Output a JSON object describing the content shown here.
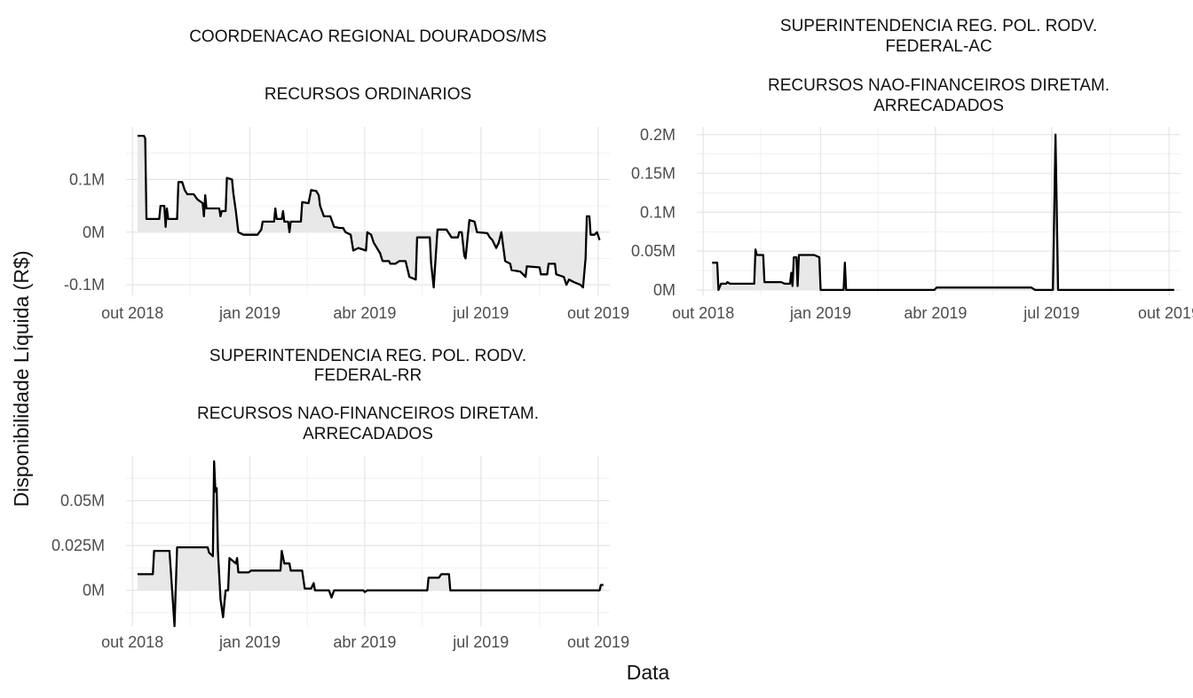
{
  "chart_data": {
    "type": "area",
    "xlabel": "Data",
    "ylabel": "Disponibilidade Líquida (R$)",
    "x_ticks": [
      "out 2018",
      "jan 2019",
      "abr 2019",
      "jul 2019",
      "out 2019"
    ],
    "panels": [
      {
        "title_lines": [
          "COORDENACAO REGIONAL DOURADOS/MS",
          "",
          "RECURSOS ORDINARIOS"
        ],
        "ylim": [
          -0.12,
          0.2
        ],
        "y_ticks": [
          {
            "value": -0.1,
            "label": "-0.1M"
          },
          {
            "value": 0,
            "label": "0M"
          },
          {
            "value": 0.1,
            "label": "0.1M"
          }
        ],
        "unit": "milhões R$",
        "points": [
          [
            "2018-10-05",
            0.183
          ],
          [
            "2018-10-10",
            0.183
          ],
          [
            "2018-10-11",
            0.178
          ],
          [
            "2018-10-12",
            0.025
          ],
          [
            "2018-10-17",
            0.025
          ],
          [
            "2018-10-22",
            0.025
          ],
          [
            "2018-10-23",
            0.05
          ],
          [
            "2018-10-26",
            0.05
          ],
          [
            "2018-10-27",
            0.01
          ],
          [
            "2018-10-28",
            0.045
          ],
          [
            "2018-10-29",
            0.025
          ],
          [
            "2018-11-05",
            0.025
          ],
          [
            "2018-11-06",
            0.095
          ],
          [
            "2018-11-09",
            0.095
          ],
          [
            "2018-11-11",
            0.08
          ],
          [
            "2018-11-13",
            0.072
          ],
          [
            "2018-11-18",
            0.072
          ],
          [
            "2018-11-21",
            0.062
          ],
          [
            "2018-11-25",
            0.055
          ],
          [
            "2018-11-26",
            0.03
          ],
          [
            "2018-11-27",
            0.07
          ],
          [
            "2018-11-28",
            0.045
          ],
          [
            "2018-12-08",
            0.045
          ],
          [
            "2018-12-09",
            0.03
          ],
          [
            "2018-12-10",
            0.04
          ],
          [
            "2018-12-13",
            0.04
          ],
          [
            "2018-12-14",
            0.103
          ],
          [
            "2018-12-18",
            0.1
          ],
          [
            "2018-12-19",
            0.075
          ],
          [
            "2018-12-21",
            0.04
          ],
          [
            "2018-12-23",
            0.0
          ],
          [
            "2018-12-27",
            -0.005
          ],
          [
            "2019-01-07",
            -0.005
          ],
          [
            "2019-01-10",
            0.005
          ],
          [
            "2019-01-11",
            0.02
          ],
          [
            "2019-01-20",
            0.02
          ],
          [
            "2019-01-21",
            0.045
          ],
          [
            "2019-01-22",
            0.025
          ],
          [
            "2019-01-26",
            0.025
          ],
          [
            "2019-01-27",
            0.04
          ],
          [
            "2019-01-28",
            0.02
          ],
          [
            "2019-01-31",
            0.02
          ],
          [
            "2019-02-01",
            0.0
          ],
          [
            "2019-02-02",
            0.02
          ],
          [
            "2019-02-10",
            0.02
          ],
          [
            "2019-02-11",
            0.057
          ],
          [
            "2019-02-16",
            0.055
          ],
          [
            "2019-02-18",
            0.08
          ],
          [
            "2019-02-22",
            0.078
          ],
          [
            "2019-02-24",
            0.07
          ],
          [
            "2019-02-25",
            0.05
          ],
          [
            "2019-02-28",
            0.03
          ],
          [
            "2019-03-05",
            0.03
          ],
          [
            "2019-03-08",
            0.01
          ],
          [
            "2019-03-12",
            0.008
          ],
          [
            "2019-03-15",
            0.008
          ],
          [
            "2019-03-17",
            0.0
          ],
          [
            "2019-03-21",
            -0.005
          ],
          [
            "2019-03-23",
            -0.035
          ],
          [
            "2019-03-27",
            -0.03
          ],
          [
            "2019-04-02",
            -0.035
          ],
          [
            "2019-04-03",
            0.0
          ],
          [
            "2019-04-06",
            -0.005
          ],
          [
            "2019-04-08",
            -0.02
          ],
          [
            "2019-04-13",
            -0.04
          ],
          [
            "2019-04-15",
            -0.055
          ],
          [
            "2019-04-20",
            -0.055
          ],
          [
            "2019-04-21",
            -0.06
          ],
          [
            "2019-04-25",
            -0.06
          ],
          [
            "2019-04-28",
            -0.055
          ],
          [
            "2019-05-03",
            -0.055
          ],
          [
            "2019-05-06",
            -0.085
          ],
          [
            "2019-05-11",
            -0.09
          ],
          [
            "2019-05-12",
            -0.01
          ],
          [
            "2019-05-17",
            -0.01
          ],
          [
            "2019-05-22",
            -0.01
          ],
          [
            "2019-05-23",
            -0.06
          ],
          [
            "2019-05-25",
            -0.105
          ],
          [
            "2019-05-28",
            0.005
          ],
          [
            "2019-06-04",
            0.005
          ],
          [
            "2019-06-08",
            -0.01
          ],
          [
            "2019-06-13",
            -0.01
          ],
          [
            "2019-06-14",
            0.0
          ],
          [
            "2019-06-16",
            0.0
          ],
          [
            "2019-06-18",
            -0.045
          ],
          [
            "2019-06-19",
            -0.05
          ],
          [
            "2019-06-22",
            0.023
          ],
          [
            "2019-06-26",
            0.02
          ],
          [
            "2019-06-28",
            0.0
          ],
          [
            "2019-07-06",
            -0.002
          ],
          [
            "2019-07-08",
            -0.01
          ],
          [
            "2019-07-10",
            -0.015
          ],
          [
            "2019-07-13",
            -0.03
          ],
          [
            "2019-07-15",
            -0.02
          ],
          [
            "2019-07-17",
            0.0
          ],
          [
            "2019-07-20",
            -0.055
          ],
          [
            "2019-07-24",
            -0.06
          ],
          [
            "2019-07-25",
            -0.072
          ],
          [
            "2019-08-01",
            -0.075
          ],
          [
            "2019-08-05",
            -0.085
          ],
          [
            "2019-08-06",
            -0.065
          ],
          [
            "2019-08-16",
            -0.067
          ],
          [
            "2019-08-17",
            -0.08
          ],
          [
            "2019-08-22",
            -0.08
          ],
          [
            "2019-08-23",
            -0.06
          ],
          [
            "2019-08-28",
            -0.06
          ],
          [
            "2019-08-29",
            -0.08
          ],
          [
            "2019-09-04",
            -0.085
          ],
          [
            "2019-09-06",
            -0.1
          ],
          [
            "2019-09-08",
            -0.09
          ],
          [
            "2019-09-12",
            -0.095
          ],
          [
            "2019-09-17",
            -0.1
          ],
          [
            "2019-09-19",
            -0.105
          ],
          [
            "2019-09-21",
            -0.05
          ],
          [
            "2019-09-22",
            0.03
          ],
          [
            "2019-09-24",
            0.03
          ],
          [
            "2019-09-25",
            -0.005
          ],
          [
            "2019-09-28",
            -0.005
          ],
          [
            "2019-09-30",
            0.0
          ],
          [
            "2019-10-02",
            -0.015
          ]
        ]
      },
      {
        "title_lines": [
          "SUPERINTENDENCIA REG. POL. RODV.",
          "FEDERAL-AC",
          "",
          "RECURSOS NAO-FINANCEIROS DIRETAM.",
          "ARRECADADOS"
        ],
        "ylim": [
          -0.007,
          0.21
        ],
        "y_ticks": [
          {
            "value": 0,
            "label": "0M"
          },
          {
            "value": 0.05,
            "label": "0.05M"
          },
          {
            "value": 0.1,
            "label": "0.1M"
          },
          {
            "value": 0.15,
            "label": "0.15M"
          },
          {
            "value": 0.2,
            "label": "0.2M"
          }
        ],
        "unit": "milhões R$",
        "points": [
          [
            "2018-10-08",
            0.035
          ],
          [
            "2018-10-12",
            0.035
          ],
          [
            "2018-10-13",
            0.0
          ],
          [
            "2018-10-15",
            0.008
          ],
          [
            "2018-10-19",
            0.008
          ],
          [
            "2018-10-20",
            0.01
          ],
          [
            "2018-10-22",
            0.008
          ],
          [
            "2018-11-10",
            0.008
          ],
          [
            "2018-11-11",
            0.052
          ],
          [
            "2018-11-12",
            0.045
          ],
          [
            "2018-11-17",
            0.045
          ],
          [
            "2018-11-18",
            0.01
          ],
          [
            "2018-12-01",
            0.01
          ],
          [
            "2018-12-04",
            0.008
          ],
          [
            "2018-12-08",
            0.008
          ],
          [
            "2018-12-09",
            0.022
          ],
          [
            "2018-12-10",
            0.005
          ],
          [
            "2018-12-11",
            0.042
          ],
          [
            "2018-12-13",
            0.042
          ],
          [
            "2018-12-14",
            0.005
          ],
          [
            "2018-12-15",
            0.045
          ],
          [
            "2018-12-27",
            0.045
          ],
          [
            "2018-12-31",
            0.042
          ],
          [
            "2019-01-01",
            0.0
          ],
          [
            "2019-01-19",
            0.0
          ],
          [
            "2019-01-20",
            0.035
          ],
          [
            "2019-01-21",
            0.0
          ],
          [
            "2019-03-31",
            0.0
          ],
          [
            "2019-04-02",
            0.003
          ],
          [
            "2019-06-15",
            0.003
          ],
          [
            "2019-06-18",
            0.0
          ],
          [
            "2019-07-02",
            0.0
          ],
          [
            "2019-07-04",
            0.2
          ],
          [
            "2019-07-06",
            0.0
          ],
          [
            "2019-10-05",
            0.0
          ]
        ]
      },
      {
        "title_lines": [
          "SUPERINTENDENCIA REG. POL. RODV.",
          "FEDERAL-RR",
          "",
          "RECURSOS NAO-FINANCEIROS DIRETAM.",
          "ARRECADADOS"
        ],
        "ylim": [
          -0.02,
          0.075
        ],
        "y_ticks": [
          {
            "value": 0,
            "label": "0M"
          },
          {
            "value": 0.025,
            "label": "0.025M"
          },
          {
            "value": 0.05,
            "label": "0.05M"
          }
        ],
        "unit": "milhões R$",
        "points": [
          [
            "2018-10-05",
            0.009
          ],
          [
            "2018-10-17",
            0.009
          ],
          [
            "2018-10-18",
            0.022
          ],
          [
            "2018-10-30",
            0.022
          ],
          [
            "2018-10-31",
            0.012
          ],
          [
            "2018-11-03",
            -0.02
          ],
          [
            "2018-11-05",
            0.024
          ],
          [
            "2018-11-29",
            0.024
          ],
          [
            "2018-11-30",
            0.021
          ],
          [
            "2018-12-03",
            0.019
          ],
          [
            "2018-12-04",
            0.072
          ],
          [
            "2018-12-05",
            0.055
          ],
          [
            "2018-12-06",
            0.057
          ],
          [
            "2018-12-07",
            0.022
          ],
          [
            "2018-12-09",
            -0.005
          ],
          [
            "2018-12-11",
            -0.015
          ],
          [
            "2018-12-13",
            0.0
          ],
          [
            "2018-12-15",
            0.0
          ],
          [
            "2018-12-16",
            0.018
          ],
          [
            "2018-12-21",
            0.015
          ],
          [
            "2018-12-22",
            0.018
          ],
          [
            "2018-12-23",
            0.01
          ],
          [
            "2018-12-31",
            0.01
          ],
          [
            "2019-01-02",
            0.011
          ],
          [
            "2019-01-25",
            0.011
          ],
          [
            "2019-01-26",
            0.022
          ],
          [
            "2019-01-28",
            0.015
          ],
          [
            "2019-02-01",
            0.015
          ],
          [
            "2019-02-02",
            0.011
          ],
          [
            "2019-02-11",
            0.011
          ],
          [
            "2019-02-13",
            0.001
          ],
          [
            "2019-02-18",
            0.001
          ],
          [
            "2019-02-20",
            0.004
          ],
          [
            "2019-02-21",
            0.0
          ],
          [
            "2019-03-04",
            0.0
          ],
          [
            "2019-03-06",
            -0.004
          ],
          [
            "2019-03-08",
            0.0
          ],
          [
            "2019-03-31",
            0.0
          ],
          [
            "2019-04-01",
            -0.001
          ],
          [
            "2019-04-03",
            0.0
          ],
          [
            "2019-05-20",
            0.0
          ],
          [
            "2019-05-21",
            0.007
          ],
          [
            "2019-05-29",
            0.007
          ],
          [
            "2019-05-31",
            0.009
          ],
          [
            "2019-06-06",
            0.009
          ],
          [
            "2019-06-07",
            0.0
          ],
          [
            "2019-10-02",
            0.0
          ],
          [
            "2019-10-03",
            0.003
          ],
          [
            "2019-10-05",
            0.003
          ]
        ]
      }
    ]
  }
}
